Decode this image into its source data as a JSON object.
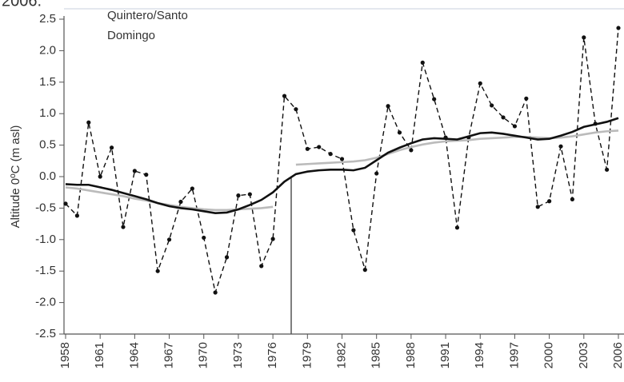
{
  "caption": "2006.",
  "chart_data": {
    "type": "line",
    "annotation": [
      "Quintero/Santo",
      "Domingo"
    ],
    "y_label": "Altitude 0ºC (m asl)",
    "x": [
      1958,
      1959,
      1960,
      1961,
      1962,
      1963,
      1964,
      1965,
      1966,
      1967,
      1968,
      1969,
      1970,
      1971,
      1972,
      1973,
      1974,
      1975,
      1976,
      1977,
      1978,
      1979,
      1980,
      1981,
      1982,
      1983,
      1984,
      1985,
      1986,
      1987,
      1988,
      1989,
      1990,
      1991,
      1992,
      1993,
      1994,
      1995,
      1996,
      1997,
      1998,
      1999,
      2000,
      2001,
      2002,
      2003,
      2004,
      2005,
      2006
    ],
    "series": [
      {
        "color": "#111111",
        "style": "dashed",
        "markers": true,
        "values": [
          -0.43,
          -0.62,
          0.86,
          0.0,
          0.46,
          -0.8,
          0.09,
          0.03,
          -1.5,
          -1.0,
          -0.4,
          -0.19,
          -0.97,
          -1.84,
          -1.28,
          -0.3,
          -0.28,
          -1.42,
          -0.99,
          1.28,
          1.07,
          0.44,
          0.47,
          0.36,
          0.28,
          -0.85,
          -1.48,
          0.05,
          1.12,
          0.7,
          0.42,
          1.81,
          1.23,
          0.62,
          -0.81,
          0.62,
          1.48,
          1.13,
          0.94,
          0.8,
          1.24,
          -0.48,
          -0.39,
          0.48,
          -0.36,
          2.21,
          0.84,
          0.11,
          2.36
        ]
      },
      {
        "color": "#bbbbbb",
        "style": "solid",
        "markers": false,
        "values": [
          -0.17,
          -0.19,
          -0.22,
          -0.25,
          -0.28,
          -0.31,
          -0.35,
          -0.38,
          -0.42,
          -0.45,
          -0.48,
          -0.5,
          -0.52,
          -0.53,
          -0.53,
          -0.52,
          -0.51,
          -0.5,
          -0.48,
          null,
          0.19,
          0.2,
          0.21,
          0.22,
          0.23,
          0.24,
          0.26,
          0.3,
          0.36,
          0.42,
          0.47,
          0.51,
          0.54,
          0.56,
          0.57,
          0.58,
          0.6,
          0.61,
          0.62,
          0.63,
          0.63,
          0.62,
          0.61,
          0.62,
          0.64,
          0.67,
          0.7,
          0.72,
          0.73
        ]
      },
      {
        "color": "#111111",
        "style": "solid",
        "markers": false,
        "values": [
          -0.12,
          -0.13,
          -0.13,
          -0.17,
          -0.21,
          -0.26,
          -0.31,
          -0.36,
          -0.42,
          -0.47,
          -0.5,
          -0.52,
          -0.55,
          -0.58,
          -0.57,
          -0.52,
          -0.45,
          -0.37,
          -0.25,
          -0.08,
          0.04,
          0.08,
          0.1,
          0.11,
          0.11,
          0.1,
          0.14,
          0.26,
          0.38,
          0.46,
          0.53,
          0.59,
          0.61,
          0.6,
          0.59,
          0.64,
          0.69,
          0.7,
          0.68,
          0.65,
          0.62,
          0.59,
          0.6,
          0.65,
          0.71,
          0.79,
          0.83,
          0.87,
          0.93
        ]
      }
    ],
    "xlim": [
      1958,
      2006
    ],
    "xticks": [
      1958,
      1961,
      1964,
      1967,
      1970,
      1973,
      1976,
      1979,
      1982,
      1985,
      1988,
      1991,
      1994,
      1997,
      2000,
      2003,
      2006
    ],
    "ylim": [
      -2.5,
      2.5
    ],
    "yticks": [
      -2.5,
      {
        "value": -2,
        "label": "-2.0"
      },
      -1.5,
      {
        "value": -1,
        "label": "-1.0"
      },
      -0.5,
      {
        "value": 0,
        "label": "0.0"
      },
      0.5,
      {
        "value": 1,
        "label": "1.0"
      },
      1.5,
      {
        "value": 2,
        "label": "2.0"
      },
      2.5
    ]
  }
}
